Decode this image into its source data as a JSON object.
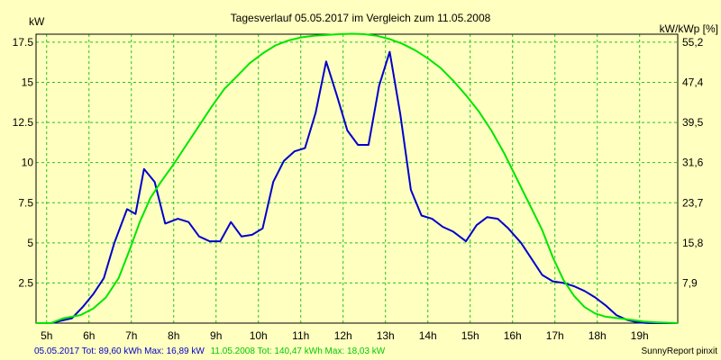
{
  "chart_data": {
    "type": "line",
    "title": "Tagesverlauf 05.05.2017 im Vergleich zum 11.05.2008",
    "ylabel_left": "kW",
    "ylabel_right": "kW/kWp [%]",
    "xlim": [
      4.75,
      19.9
    ],
    "ylim": [
      0,
      18
    ],
    "x_ticks": [
      {
        "label": "5h",
        "x": 5
      },
      {
        "label": "6h",
        "x": 6
      },
      {
        "label": "7h",
        "x": 7
      },
      {
        "label": "8h",
        "x": 8
      },
      {
        "label": "9h",
        "x": 9
      },
      {
        "label": "10h",
        "x": 10
      },
      {
        "label": "11h",
        "x": 11
      },
      {
        "label": "12h",
        "x": 12
      },
      {
        "label": "13h",
        "x": 13
      },
      {
        "label": "14h",
        "x": 14
      },
      {
        "label": "15h",
        "x": 15
      },
      {
        "label": "16h",
        "x": 16
      },
      {
        "label": "17h",
        "x": 17
      },
      {
        "label": "18h",
        "x": 18
      },
      {
        "label": "19h",
        "x": 19
      }
    ],
    "y_ticks_left": [
      {
        "label": "2.5",
        "v": 2.5
      },
      {
        "label": "5",
        "v": 5
      },
      {
        "label": "7.5",
        "v": 7.5
      },
      {
        "label": "10",
        "v": 10
      },
      {
        "label": "12.5",
        "v": 12.5
      },
      {
        "label": "15",
        "v": 15
      },
      {
        "label": "17.5",
        "v": 17.5
      }
    ],
    "y_ticks_right": [
      {
        "label": "7,9",
        "v": 2.5
      },
      {
        "label": "15,8",
        "v": 5
      },
      {
        "label": "23,7",
        "v": 7.5
      },
      {
        "label": "31,6",
        "v": 10
      },
      {
        "label": "39,5",
        "v": 12.5
      },
      {
        "label": "47,4",
        "v": 15
      },
      {
        "label": "55,2",
        "v": 17.5
      }
    ],
    "grid": true,
    "series": [
      {
        "summary": "05.05.2017 Tot: 89,60 kWh Max: 16,89 kW",
        "color": "#0000cc",
        "points": [
          [
            4.75,
            0
          ],
          [
            5.1,
            0
          ],
          [
            5.35,
            0.15
          ],
          [
            5.6,
            0.3
          ],
          [
            5.85,
            1.0
          ],
          [
            6.1,
            1.8
          ],
          [
            6.35,
            2.8
          ],
          [
            6.6,
            5.0
          ],
          [
            6.9,
            7.1
          ],
          [
            7.1,
            6.8
          ],
          [
            7.3,
            9.6
          ],
          [
            7.55,
            8.8
          ],
          [
            7.8,
            6.2
          ],
          [
            8.1,
            6.5
          ],
          [
            8.35,
            6.3
          ],
          [
            8.6,
            5.4
          ],
          [
            8.85,
            5.1
          ],
          [
            9.1,
            5.1
          ],
          [
            9.35,
            6.3
          ],
          [
            9.6,
            5.4
          ],
          [
            9.85,
            5.5
          ],
          [
            10.1,
            5.9
          ],
          [
            10.35,
            8.8
          ],
          [
            10.6,
            10.1
          ],
          [
            10.85,
            10.7
          ],
          [
            11.1,
            10.9
          ],
          [
            11.35,
            13.1
          ],
          [
            11.6,
            16.3
          ],
          [
            11.85,
            14.2
          ],
          [
            12.1,
            12.0
          ],
          [
            12.35,
            11.1
          ],
          [
            12.6,
            11.1
          ],
          [
            12.85,
            14.8
          ],
          [
            13.1,
            16.9
          ],
          [
            13.35,
            13.0
          ],
          [
            13.6,
            8.3
          ],
          [
            13.85,
            6.7
          ],
          [
            14.1,
            6.5
          ],
          [
            14.35,
            6.0
          ],
          [
            14.6,
            5.7
          ],
          [
            14.9,
            5.1
          ],
          [
            15.15,
            6.1
          ],
          [
            15.4,
            6.6
          ],
          [
            15.65,
            6.5
          ],
          [
            15.9,
            5.9
          ],
          [
            16.2,
            5.0
          ],
          [
            16.45,
            4.0
          ],
          [
            16.7,
            3.0
          ],
          [
            16.95,
            2.6
          ],
          [
            17.2,
            2.5
          ],
          [
            17.45,
            2.3
          ],
          [
            17.7,
            2.0
          ],
          [
            17.95,
            1.6
          ],
          [
            18.2,
            1.1
          ],
          [
            18.45,
            0.5
          ],
          [
            18.7,
            0.2
          ],
          [
            18.95,
            0.05
          ],
          [
            19.2,
            0
          ],
          [
            19.9,
            0
          ]
        ]
      },
      {
        "summary": "11.05.2008 Tot: 140,47 kWh Max: 18,03 kW",
        "color": "#00e600",
        "points": [
          [
            4.75,
            0
          ],
          [
            5.1,
            0
          ],
          [
            5.4,
            0.3
          ],
          [
            5.8,
            0.5
          ],
          [
            6.1,
            0.9
          ],
          [
            6.4,
            1.6
          ],
          [
            6.7,
            2.8
          ],
          [
            6.95,
            4.5
          ],
          [
            7.2,
            6.3
          ],
          [
            7.45,
            7.8
          ],
          [
            7.7,
            8.8
          ],
          [
            8.0,
            9.9
          ],
          [
            8.3,
            11.1
          ],
          [
            8.6,
            12.3
          ],
          [
            8.9,
            13.5
          ],
          [
            9.2,
            14.6
          ],
          [
            9.5,
            15.4
          ],
          [
            9.8,
            16.2
          ],
          [
            10.1,
            16.8
          ],
          [
            10.4,
            17.3
          ],
          [
            10.7,
            17.6
          ],
          [
            11.0,
            17.8
          ],
          [
            11.3,
            17.9
          ],
          [
            11.6,
            17.95
          ],
          [
            11.9,
            18.0
          ],
          [
            12.2,
            18.03
          ],
          [
            12.5,
            18.0
          ],
          [
            12.8,
            17.9
          ],
          [
            13.1,
            17.7
          ],
          [
            13.4,
            17.4
          ],
          [
            13.7,
            17.0
          ],
          [
            14.0,
            16.5
          ],
          [
            14.3,
            15.9
          ],
          [
            14.6,
            15.1
          ],
          [
            14.9,
            14.2
          ],
          [
            15.2,
            13.2
          ],
          [
            15.5,
            12.0
          ],
          [
            15.8,
            10.6
          ],
          [
            16.1,
            9.0
          ],
          [
            16.4,
            7.4
          ],
          [
            16.7,
            5.8
          ],
          [
            16.95,
            4.1
          ],
          [
            17.2,
            2.7
          ],
          [
            17.45,
            1.7
          ],
          [
            17.7,
            1.0
          ],
          [
            17.95,
            0.6
          ],
          [
            18.2,
            0.4
          ],
          [
            18.5,
            0.3
          ],
          [
            18.8,
            0.2
          ],
          [
            19.1,
            0.1
          ],
          [
            19.4,
            0.05
          ],
          [
            19.9,
            0
          ]
        ]
      }
    ],
    "watermark": "SunnyReport pinxit"
  }
}
